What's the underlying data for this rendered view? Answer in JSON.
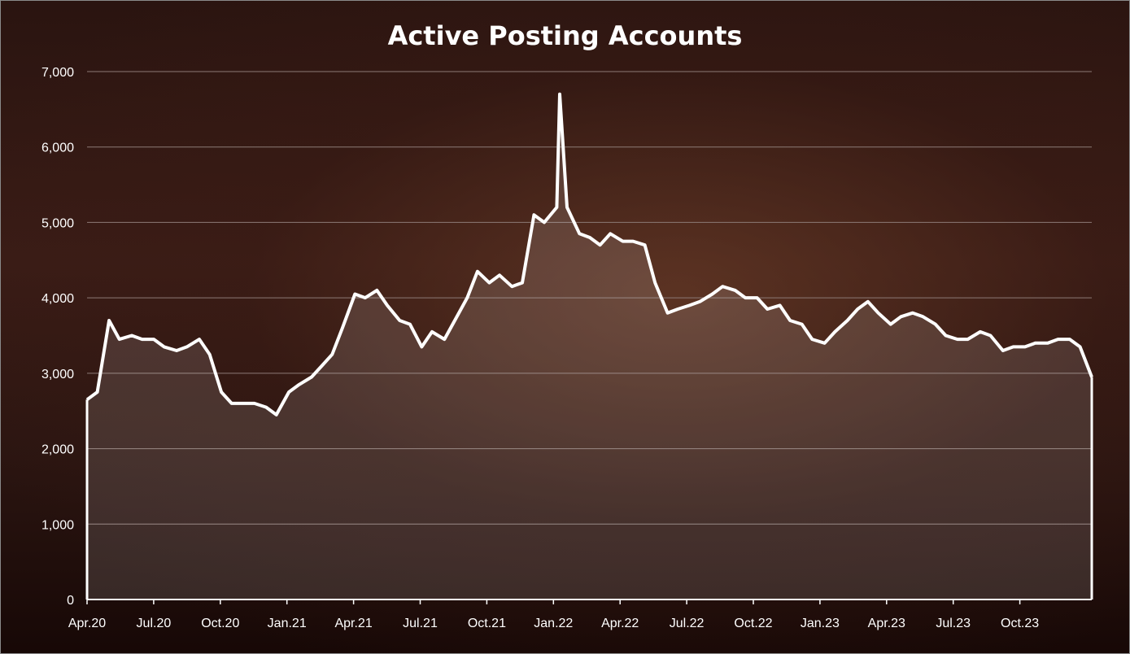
{
  "chart_data": {
    "type": "area",
    "title": "Active Posting Accounts",
    "xlabel": "",
    "ylabel": "",
    "ylim": [
      0,
      7000
    ],
    "yticks": [
      "0",
      "1,000",
      "2,000",
      "3,000",
      "4,000",
      "5,000",
      "6,000",
      "7,000"
    ],
    "xticks": [
      "Apr.20",
      "Jul.20",
      "Oct.20",
      "Jan.21",
      "Apr.21",
      "Jul.21",
      "Oct.21",
      "Jan.22",
      "Apr.22",
      "Jul.22",
      "Oct.22",
      "Jan.23",
      "Apr.23",
      "Jul.23",
      "Oct.23"
    ],
    "grid": true,
    "series": [
      {
        "x": [
          "2020-04-01",
          "2020-04-15",
          "2020-05-01",
          "2020-05-15",
          "2020-06-01",
          "2020-06-15",
          "2020-07-01",
          "2020-07-15",
          "2020-08-01",
          "2020-08-15",
          "2020-09-01",
          "2020-09-15",
          "2020-10-01",
          "2020-10-15",
          "2020-11-01",
          "2020-11-15",
          "2020-12-01",
          "2020-12-15",
          "2021-01-01",
          "2021-01-15",
          "2021-02-01",
          "2021-02-15",
          "2021-03-01",
          "2021-03-15",
          "2021-04-01",
          "2021-04-15",
          "2021-05-01",
          "2021-05-15",
          "2021-06-01",
          "2021-06-15",
          "2021-07-01",
          "2021-07-15",
          "2021-08-01",
          "2021-08-15",
          "2021-09-01",
          "2021-09-15",
          "2021-10-01",
          "2021-10-15",
          "2021-11-01",
          "2021-11-15",
          "2021-12-01",
          "2021-12-15",
          "2022-01-01",
          "2022-01-05",
          "2022-01-15",
          "2022-02-01",
          "2022-02-15",
          "2022-03-01",
          "2022-03-15",
          "2022-04-01",
          "2022-04-15",
          "2022-05-01",
          "2022-05-15",
          "2022-06-01",
          "2022-06-15",
          "2022-07-01",
          "2022-07-15",
          "2022-08-01",
          "2022-08-15",
          "2022-09-01",
          "2022-09-15",
          "2022-10-01",
          "2022-10-15",
          "2022-11-01",
          "2022-11-15",
          "2022-12-01",
          "2022-12-15",
          "2023-01-01",
          "2023-01-15",
          "2023-02-01",
          "2023-02-15",
          "2023-03-01",
          "2023-03-15",
          "2023-04-01",
          "2023-04-15",
          "2023-05-01",
          "2023-05-15",
          "2023-06-01",
          "2023-06-15",
          "2023-07-01",
          "2023-07-15",
          "2023-08-01",
          "2023-08-15",
          "2023-09-01",
          "2023-09-15",
          "2023-10-01",
          "2023-10-15",
          "2023-11-01",
          "2023-11-15",
          "2023-12-01",
          "2023-12-15",
          "2023-12-31"
        ],
        "values": [
          2650,
          2750,
          3700,
          3450,
          3500,
          3450,
          3450,
          3350,
          3300,
          3350,
          3450,
          3250,
          2750,
          2600,
          2600,
          2600,
          2550,
          2450,
          2750,
          2850,
          2950,
          3100,
          3250,
          3600,
          4050,
          4000,
          4100,
          3900,
          3700,
          3650,
          3350,
          3550,
          3450,
          3700,
          4000,
          4350,
          4200,
          4300,
          4150,
          4200,
          5100,
          5000,
          5200,
          6700,
          5200,
          4850,
          4800,
          4700,
          4850,
          4750,
          4750,
          4700,
          4200,
          3800,
          3850,
          3900,
          3950,
          4050,
          4150,
          4100,
          4000,
          4000,
          3850,
          3900,
          3700,
          3650,
          3450,
          3400,
          3550,
          3700,
          3850,
          3950,
          3800,
          3650,
          3750,
          3800,
          3750,
          3650,
          3500,
          3450,
          3450,
          3550,
          3500,
          3300,
          3350,
          3350,
          3400,
          3400,
          3450,
          3450,
          3350,
          2950
        ]
      }
    ],
    "colors": {
      "line": "#ffffff",
      "grid": "#8c7a76",
      "axis": "#ffffff"
    }
  }
}
